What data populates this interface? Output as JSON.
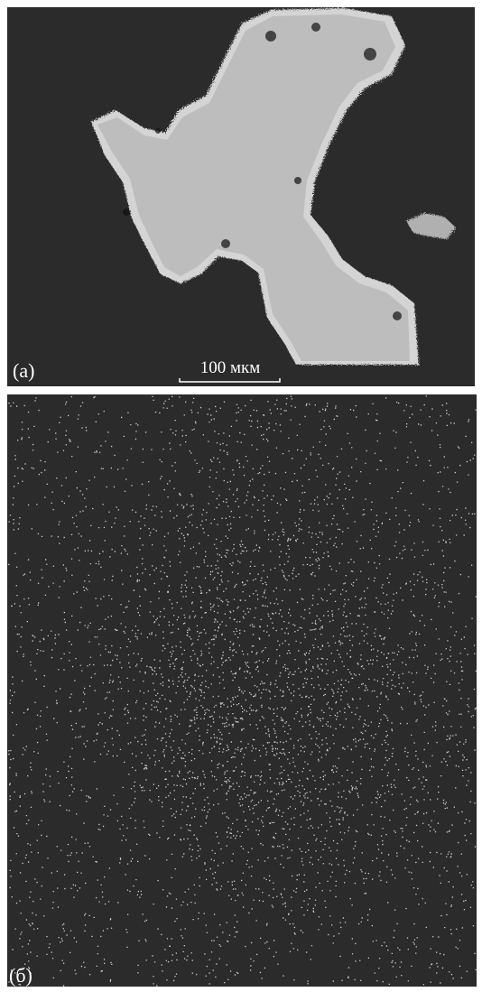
{
  "panel_a": {
    "label": "(а)",
    "scale_bar": "100 мкм"
  },
  "panel_b": {
    "label": "(б)"
  }
}
